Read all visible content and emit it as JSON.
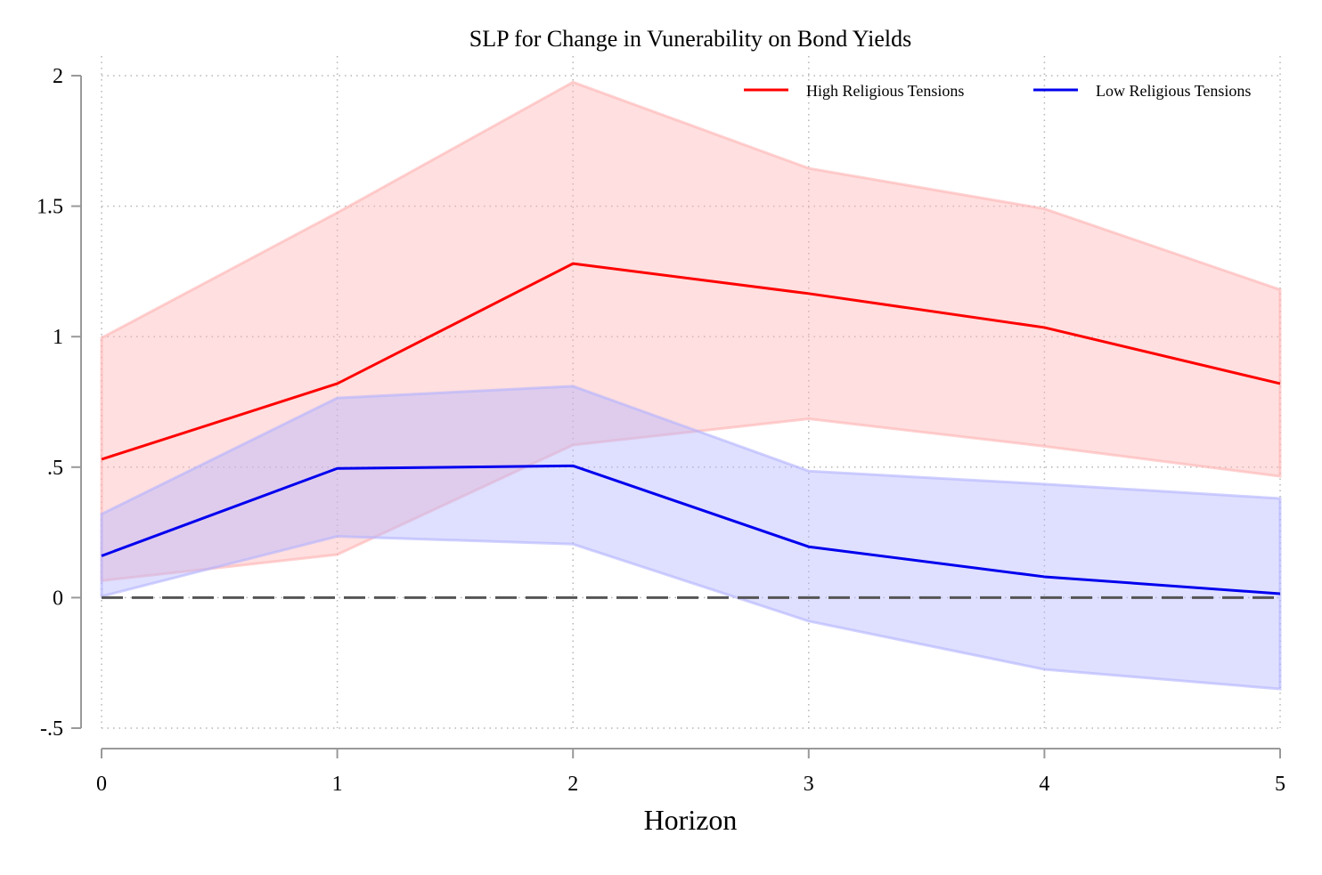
{
  "chart_data": {
    "type": "line",
    "title": "SLP for Change in Vunerability on Bond Yields",
    "xlabel": "Horizon",
    "ylabel": "",
    "x": [
      0,
      1,
      2,
      3,
      4,
      5
    ],
    "xlim": [
      0,
      5
    ],
    "ylim": [
      -0.5,
      2
    ],
    "yticks": [
      -0.5,
      0,
      0.5,
      1,
      1.5,
      2
    ],
    "ytick_labels": [
      "-.5",
      "0",
      ".5",
      "1",
      "1.5",
      "2"
    ],
    "xticks": [
      0,
      1,
      2,
      3,
      4,
      5
    ],
    "xtick_labels": [
      "0",
      "1",
      "2",
      "3",
      "4",
      "5"
    ],
    "grid": true,
    "legend_position": "top-right",
    "reference_line": {
      "y": 0,
      "style": "dashed",
      "color": "#555555"
    },
    "series": [
      {
        "name": "High Religious Tensions",
        "color": "#ff0000",
        "band_color": "#ffb3b3",
        "values": [
          0.53,
          0.82,
          1.28,
          1.165,
          1.035,
          0.82
        ],
        "lower": [
          0.065,
          0.165,
          0.585,
          0.685,
          0.58,
          0.465
        ],
        "upper": [
          0.995,
          1.475,
          1.975,
          1.645,
          1.49,
          1.18
        ]
      },
      {
        "name": "Low Religious Tensions",
        "color": "#0000ee",
        "band_color": "#b3b3ff",
        "values": [
          0.16,
          0.495,
          0.505,
          0.195,
          0.08,
          0.015
        ],
        "lower": [
          0.005,
          0.235,
          0.205,
          -0.09,
          -0.275,
          -0.35
        ],
        "upper": [
          0.32,
          0.765,
          0.81,
          0.485,
          0.435,
          0.38
        ]
      }
    ]
  }
}
